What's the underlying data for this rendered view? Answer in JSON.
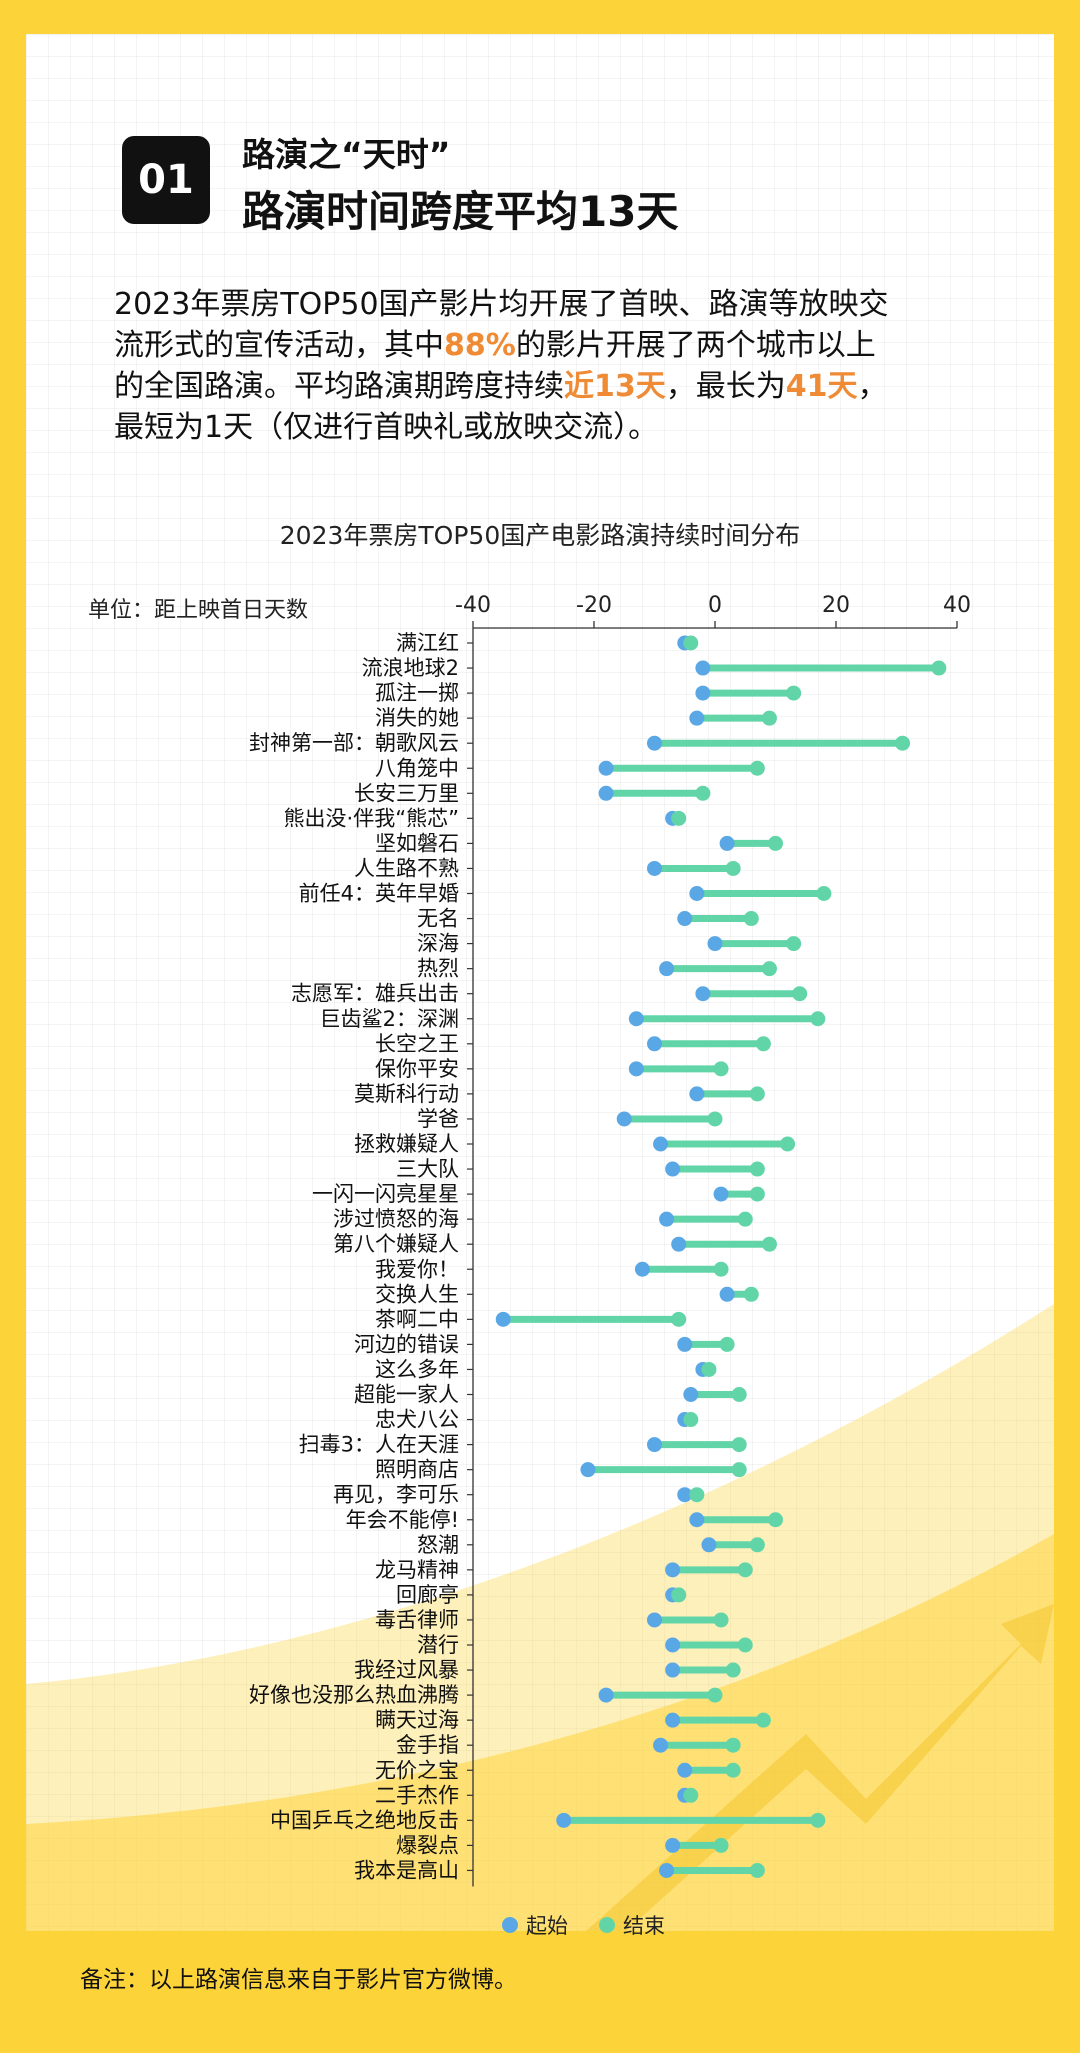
{
  "header": {
    "badge": "01",
    "subtitle": "路演之“天时”",
    "title": "路演时间跨度平均13天"
  },
  "intro": {
    "l1": "2023年票房TOP50国产影片均开展了首映、路演等放映交",
    "l2a": "流形式的宣传活动，其中",
    "l2h": "88%",
    "l2b": "的影片开展了两个城市以上",
    "l3a": "的全国路演。平均路演期跨度持续",
    "l3h1": "近13天",
    "l3b": "，最长为",
    "l3h2": "41天",
    "l3c": "，",
    "l4": "最短为1天（仅进行首映礼或放映交流）。"
  },
  "colors": {
    "background": "#fdd33a",
    "highlight": "#ef8a35",
    "start": "#5aa7e6",
    "end": "#62d5a8"
  },
  "chart_data": {
    "type": "dumbbell",
    "title": "2023年票房TOP50国产电影路演持续时间分布",
    "unit_label": "单位：距上映首日天数",
    "xlim": [
      -40,
      40
    ],
    "x_ticks": [
      -40,
      -20,
      0,
      20,
      40
    ],
    "legend_position": "bottom",
    "legend": {
      "start": "起始",
      "end": "结束"
    },
    "categories": [
      "满江红",
      "流浪地球2",
      "孤注一掷",
      "消失的她",
      "封神第一部：朝歌风云",
      "八角笼中",
      "长安三万里",
      "熊出没·伴我“熊芯”",
      "坚如磐石",
      "人生路不熟",
      "前任4：英年早婚",
      "无名",
      "深海",
      "热烈",
      "志愿军：雄兵出击",
      "巨齿鲨2：深渊",
      "长空之王",
      "保你平安",
      "莫斯科行动",
      "学爸",
      "拯救嫌疑人",
      "三大队",
      "一闪一闪亮星星",
      "涉过愤怒的海",
      "第八个嫌疑人",
      "我爱你！",
      "交换人生",
      "茶啊二中",
      "河边的错误",
      "这么多年",
      "超能一家人",
      "忠犬八公",
      "扫毒3：人在天涯",
      "照明商店",
      "再见，李可乐",
      "年会不能停!",
      "怒潮",
      "龙马精神",
      "回廊亭",
      "毒舌律师",
      "潜行",
      "我经过风暴",
      "好像也没那么热血沸腾",
      "瞒天过海",
      "金手指",
      "无价之宝",
      "二手杰作",
      "中国乒乓之绝地反击",
      "爆裂点",
      "我本是高山"
    ],
    "series": [
      {
        "name": "起始",
        "values": [
          -5,
          -2,
          -2,
          -3,
          -10,
          -18,
          -18,
          -7,
          2,
          -10,
          -3,
          -5,
          0,
          -8,
          -2,
          -13,
          -10,
          -13,
          -3,
          -15,
          -9,
          -7,
          1,
          -8,
          -6,
          -12,
          2,
          -35,
          -5,
          -2,
          -4,
          -5,
          -10,
          -21,
          -5,
          -3,
          -1,
          -7,
          -7,
          -10,
          -7,
          -7,
          -18,
          -7,
          -9,
          -5,
          -5,
          -25,
          -7,
          -8
        ]
      },
      {
        "name": "结束",
        "values": [
          -4,
          37,
          13,
          9,
          31,
          7,
          -2,
          -6,
          10,
          3,
          18,
          6,
          13,
          9,
          14,
          17,
          8,
          1,
          7,
          0,
          12,
          7,
          7,
          5,
          9,
          1,
          6,
          -6,
          2,
          -1,
          4,
          -4,
          4,
          4,
          -3,
          10,
          7,
          5,
          -6,
          1,
          5,
          3,
          0,
          8,
          3,
          3,
          -4,
          17,
          1,
          7
        ]
      }
    ]
  },
  "footer": {
    "note": "备注：以上路演信息来自于影片官方微博。"
  }
}
